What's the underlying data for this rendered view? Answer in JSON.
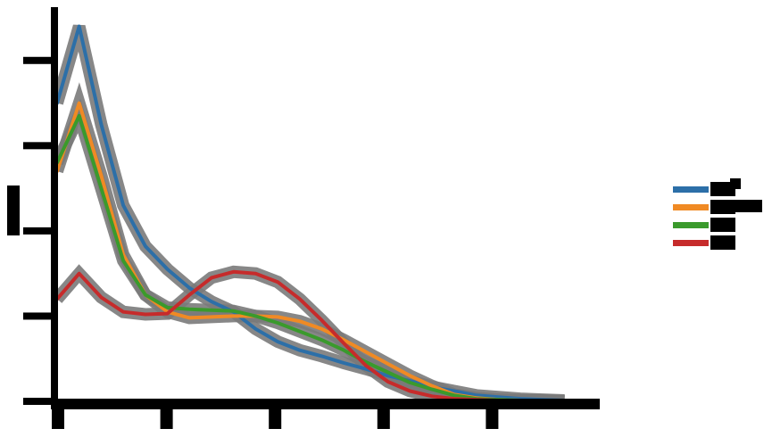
{
  "chart_data": {
    "type": "line",
    "title": "",
    "xlabel": "",
    "ylabel": "",
    "x": [
      0,
      0.25,
      0.5,
      0.75,
      1,
      1.25,
      1.5,
      1.75,
      2,
      2.25,
      2.5,
      2.75,
      3,
      3.25,
      3.5,
      3.75,
      4,
      4.25,
      4.5,
      4.75,
      5,
      5.25,
      5.5,
      5.75
    ],
    "xlim": [
      0,
      6.15
    ],
    "ylim": [
      0,
      4.5
    ],
    "grid": false,
    "legend_position": "right",
    "series": [
      {
        "color": "#2c6fa8",
        "values": [
          3.5,
          4.4,
          3.25,
          2.3,
          1.82,
          1.55,
          1.33,
          1.17,
          1.05,
          0.85,
          0.7,
          0.6,
          0.53,
          0.45,
          0.38,
          0.3,
          0.24,
          0.17,
          0.12,
          0.07,
          0.05,
          0.03,
          0.02,
          0.01
        ]
      },
      {
        "color": "#f08a24",
        "values": [
          2.7,
          3.5,
          2.65,
          1.72,
          1.25,
          1.05,
          0.98,
          0.99,
          1.0,
          1.0,
          0.99,
          0.94,
          0.85,
          0.72,
          0.58,
          0.44,
          0.3,
          0.18,
          0.08,
          0.04,
          0.02,
          0.01,
          0.01,
          0.0
        ]
      },
      {
        "color": "#3a9a2c",
        "values": [
          2.8,
          3.35,
          2.5,
          1.65,
          1.25,
          1.1,
          1.08,
          1.07,
          1.06,
          1.0,
          0.92,
          0.82,
          0.72,
          0.6,
          0.46,
          0.34,
          0.22,
          0.14,
          0.07,
          0.03,
          0.02,
          0.01,
          0.01,
          0.0
        ]
      },
      {
        "color": "#c62b2b",
        "values": [
          1.2,
          1.5,
          1.22,
          1.05,
          1.02,
          1.03,
          1.25,
          1.45,
          1.52,
          1.5,
          1.4,
          1.2,
          0.95,
          0.68,
          0.42,
          0.23,
          0.12,
          0.06,
          0.03,
          0.02,
          0.01,
          0.0,
          0.0,
          0.0
        ]
      }
    ]
  }
}
